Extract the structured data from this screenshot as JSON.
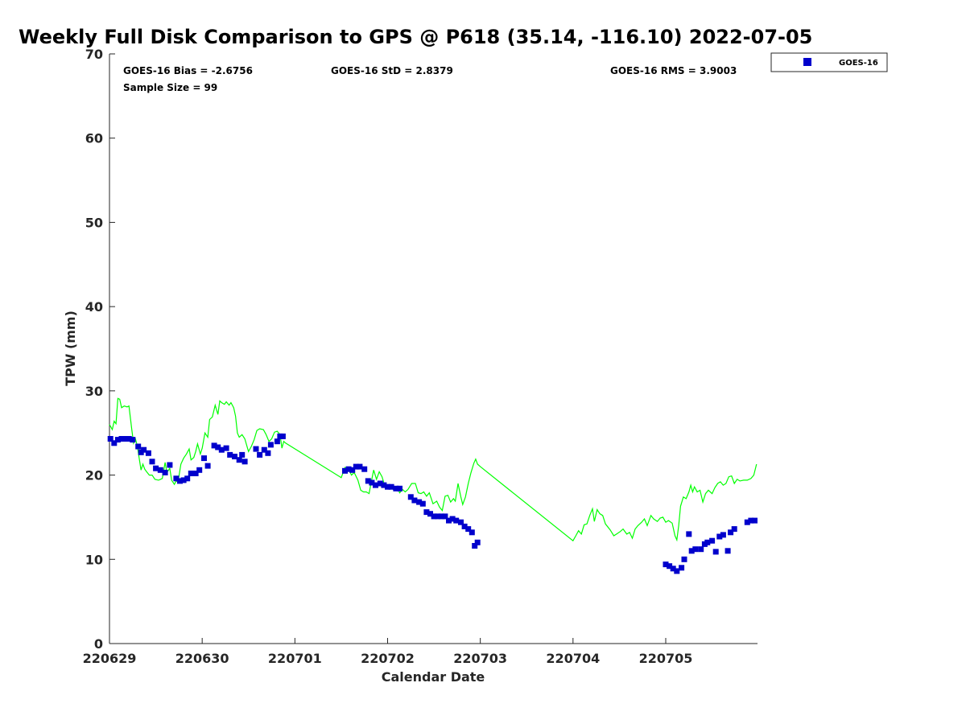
{
  "chart_data": {
    "type": "scatter",
    "title": "Weekly Full Disk Comparison to GPS @ P618 (35.14, -116.10) 2022-07-05",
    "xlabel": "Calendar Date",
    "ylabel": "TPW (mm)",
    "xlim": [
      0,
      6.99
    ],
    "ylim": [
      0,
      70
    ],
    "x_tick_values": [
      0,
      1,
      2,
      3,
      4,
      5,
      6
    ],
    "x_tick_labels": [
      "220629",
      "220630",
      "220701",
      "220702",
      "220703",
      "220704",
      "220705"
    ],
    "y_tick_values": [
      0,
      10,
      20,
      30,
      40,
      50,
      60,
      70
    ],
    "y_tick_labels": [
      "0",
      "10",
      "20",
      "30",
      "40",
      "50",
      "60",
      "70"
    ],
    "grid": false,
    "legend_position": "outside-top-right",
    "stats": {
      "bias": "GOES-16 Bias = -2.6756",
      "std": "GOES-16 StD = 2.8379",
      "rms": "GOES-16 RMS = 3.9003",
      "sample": "Sample Size = 99"
    },
    "series": [
      {
        "name": "GOES-16",
        "kind": "markers",
        "color": "#0000cc",
        "points": [
          [
            0.01,
            24.3
          ],
          [
            0.05,
            23.8
          ],
          [
            0.09,
            24.2
          ],
          [
            0.13,
            24.3
          ],
          [
            0.17,
            24.3
          ],
          [
            0.21,
            24.3
          ],
          [
            0.25,
            24.2
          ],
          [
            0.31,
            23.4
          ],
          [
            0.34,
            22.7
          ],
          [
            0.37,
            23.0
          ],
          [
            0.42,
            22.6
          ],
          [
            0.46,
            21.6
          ],
          [
            0.5,
            20.8
          ],
          [
            0.55,
            20.6
          ],
          [
            0.6,
            20.3
          ],
          [
            0.65,
            21.2
          ],
          [
            0.72,
            19.6
          ],
          [
            0.76,
            19.3
          ],
          [
            0.8,
            19.4
          ],
          [
            0.84,
            19.6
          ],
          [
            0.88,
            20.2
          ],
          [
            0.93,
            20.2
          ],
          [
            0.97,
            20.6
          ],
          [
            1.02,
            22.0
          ],
          [
            1.06,
            21.1
          ],
          [
            1.13,
            23.5
          ],
          [
            1.17,
            23.3
          ],
          [
            1.21,
            23.0
          ],
          [
            1.26,
            23.2
          ],
          [
            1.3,
            22.4
          ],
          [
            1.35,
            22.2
          ],
          [
            1.4,
            21.8
          ],
          [
            1.43,
            22.4
          ],
          [
            1.46,
            21.6
          ],
          [
            1.58,
            23.1
          ],
          [
            1.62,
            22.4
          ],
          [
            1.67,
            23.0
          ],
          [
            1.71,
            22.6
          ],
          [
            1.74,
            23.6
          ],
          [
            1.81,
            24.0
          ],
          [
            1.84,
            24.6
          ],
          [
            1.87,
            24.6
          ],
          [
            2.54,
            20.5
          ],
          [
            2.58,
            20.7
          ],
          [
            2.62,
            20.6
          ],
          [
            2.66,
            21.0
          ],
          [
            2.7,
            21.0
          ],
          [
            2.75,
            20.7
          ],
          [
            2.79,
            19.3
          ],
          [
            2.83,
            19.1
          ],
          [
            2.87,
            18.8
          ],
          [
            2.92,
            19.0
          ],
          [
            2.96,
            18.8
          ],
          [
            3.0,
            18.6
          ],
          [
            3.04,
            18.6
          ],
          [
            3.09,
            18.4
          ],
          [
            3.13,
            18.4
          ],
          [
            3.25,
            17.4
          ],
          [
            3.29,
            17.0
          ],
          [
            3.34,
            16.8
          ],
          [
            3.38,
            16.6
          ],
          [
            3.42,
            15.6
          ],
          [
            3.46,
            15.4
          ],
          [
            3.5,
            15.1
          ],
          [
            3.54,
            15.1
          ],
          [
            3.58,
            15.1
          ],
          [
            3.62,
            15.1
          ],
          [
            3.66,
            14.6
          ],
          [
            3.7,
            14.8
          ],
          [
            3.74,
            14.6
          ],
          [
            3.79,
            14.4
          ],
          [
            3.83,
            13.9
          ],
          [
            3.87,
            13.6
          ],
          [
            3.91,
            13.2
          ],
          [
            3.94,
            11.6
          ],
          [
            3.97,
            12.0
          ],
          [
            6.0,
            9.4
          ],
          [
            6.04,
            9.2
          ],
          [
            6.08,
            8.9
          ],
          [
            6.12,
            8.6
          ],
          [
            6.17,
            9.0
          ],
          [
            6.2,
            10.0
          ],
          [
            6.25,
            13.0
          ],
          [
            6.28,
            11.0
          ],
          [
            6.32,
            11.2
          ],
          [
            6.38,
            11.2
          ],
          [
            6.42,
            11.8
          ],
          [
            6.45,
            12.0
          ],
          [
            6.5,
            12.2
          ],
          [
            6.54,
            10.9
          ],
          [
            6.58,
            12.7
          ],
          [
            6.62,
            12.9
          ],
          [
            6.67,
            11.0
          ],
          [
            6.7,
            13.2
          ],
          [
            6.74,
            13.6
          ],
          [
            6.88,
            14.4
          ],
          [
            6.92,
            14.6
          ],
          [
            6.96,
            14.6
          ]
        ]
      },
      {
        "kind": "line",
        "color": "#00ff00",
        "points": [
          [
            0.0,
            26.0
          ],
          [
            0.03,
            25.4
          ],
          [
            0.05,
            26.4
          ],
          [
            0.07,
            26.1
          ],
          [
            0.09,
            29.1
          ],
          [
            0.11,
            29.0
          ],
          [
            0.13,
            28.0
          ],
          [
            0.16,
            28.2
          ],
          [
            0.19,
            28.1
          ],
          [
            0.21,
            28.2
          ],
          [
            0.24,
            25.5
          ],
          [
            0.26,
            23.8
          ],
          [
            0.28,
            24.3
          ],
          [
            0.3,
            23.5
          ],
          [
            0.32,
            22.0
          ],
          [
            0.34,
            20.6
          ],
          [
            0.36,
            21.3
          ],
          [
            0.38,
            20.7
          ],
          [
            0.4,
            20.4
          ],
          [
            0.43,
            20.0
          ],
          [
            0.46,
            20.0
          ],
          [
            0.49,
            19.5
          ],
          [
            0.53,
            19.4
          ],
          [
            0.57,
            19.6
          ],
          [
            0.6,
            21.5
          ],
          [
            0.62,
            20.3
          ],
          [
            0.65,
            20.8
          ],
          [
            0.67,
            19.4
          ],
          [
            0.7,
            18.9
          ],
          [
            0.72,
            19.3
          ],
          [
            0.74,
            19.2
          ],
          [
            0.77,
            21.3
          ],
          [
            0.8,
            22.0
          ],
          [
            0.83,
            22.5
          ],
          [
            0.86,
            23.1
          ],
          [
            0.88,
            21.8
          ],
          [
            0.91,
            22.1
          ],
          [
            0.93,
            22.8
          ],
          [
            0.95,
            23.7
          ],
          [
            0.98,
            22.5
          ],
          [
            1.0,
            23.2
          ],
          [
            1.03,
            25.0
          ],
          [
            1.06,
            24.5
          ],
          [
            1.08,
            26.6
          ],
          [
            1.11,
            26.9
          ],
          [
            1.14,
            28.3
          ],
          [
            1.17,
            27.2
          ],
          [
            1.19,
            28.8
          ],
          [
            1.21,
            28.6
          ],
          [
            1.24,
            28.4
          ],
          [
            1.26,
            28.7
          ],
          [
            1.29,
            28.3
          ],
          [
            1.31,
            28.6
          ],
          [
            1.34,
            28.0
          ],
          [
            1.36,
            27.0
          ],
          [
            1.38,
            25.0
          ],
          [
            1.4,
            24.5
          ],
          [
            1.43,
            24.8
          ],
          [
            1.46,
            24.3
          ],
          [
            1.5,
            22.8
          ],
          [
            1.53,
            23.4
          ],
          [
            1.56,
            24.2
          ],
          [
            1.59,
            25.3
          ],
          [
            1.62,
            25.5
          ],
          [
            1.66,
            25.4
          ],
          [
            1.69,
            24.8
          ],
          [
            1.72,
            24.0
          ],
          [
            1.75,
            24.3
          ],
          [
            1.78,
            25.1
          ],
          [
            1.81,
            25.2
          ],
          [
            1.84,
            24.8
          ],
          [
            1.86,
            23.2
          ],
          [
            1.88,
            24.0
          ],
          [
            1.9,
            23.8
          ],
          [
            2.5,
            19.7
          ],
          [
            2.54,
            20.9
          ],
          [
            2.58,
            20.7
          ],
          [
            2.61,
            20.0
          ],
          [
            2.64,
            20.3
          ],
          [
            2.68,
            19.4
          ],
          [
            2.71,
            18.2
          ],
          [
            2.74,
            18.0
          ],
          [
            2.77,
            18.0
          ],
          [
            2.8,
            17.8
          ],
          [
            2.82,
            19.0
          ],
          [
            2.85,
            20.6
          ],
          [
            2.88,
            19.5
          ],
          [
            2.91,
            20.4
          ],
          [
            2.94,
            19.8
          ],
          [
            2.97,
            18.7
          ],
          [
            3.0,
            18.5
          ],
          [
            3.03,
            18.7
          ],
          [
            3.06,
            18.3
          ],
          [
            3.1,
            18.6
          ],
          [
            3.13,
            17.9
          ],
          [
            3.16,
            18.3
          ],
          [
            3.19,
            18.0
          ],
          [
            3.22,
            18.3
          ],
          [
            3.26,
            19.0
          ],
          [
            3.3,
            19.0
          ],
          [
            3.33,
            17.9
          ],
          [
            3.36,
            17.8
          ],
          [
            3.39,
            18.0
          ],
          [
            3.42,
            17.5
          ],
          [
            3.45,
            17.9
          ],
          [
            3.49,
            16.6
          ],
          [
            3.53,
            16.9
          ],
          [
            3.56,
            16.2
          ],
          [
            3.59,
            15.8
          ],
          [
            3.62,
            17.5
          ],
          [
            3.65,
            17.6
          ],
          [
            3.68,
            16.8
          ],
          [
            3.71,
            17.2
          ],
          [
            3.73,
            16.9
          ],
          [
            3.76,
            19.0
          ],
          [
            3.79,
            17.4
          ],
          [
            3.81,
            16.5
          ],
          [
            3.84,
            17.4
          ],
          [
            3.87,
            19.0
          ],
          [
            3.9,
            20.3
          ],
          [
            3.93,
            21.4
          ],
          [
            3.95,
            21.9
          ],
          [
            3.97,
            21.3
          ],
          [
            4.0,
            21.0
          ],
          [
            5.0,
            12.2
          ],
          [
            5.03,
            12.8
          ],
          [
            5.06,
            13.4
          ],
          [
            5.09,
            13.0
          ],
          [
            5.12,
            14.1
          ],
          [
            5.15,
            14.2
          ],
          [
            5.18,
            15.2
          ],
          [
            5.21,
            16.0
          ],
          [
            5.23,
            14.5
          ],
          [
            5.26,
            15.9
          ],
          [
            5.29,
            15.4
          ],
          [
            5.32,
            15.2
          ],
          [
            5.35,
            14.2
          ],
          [
            5.4,
            13.5
          ],
          [
            5.44,
            12.8
          ],
          [
            5.47,
            13.0
          ],
          [
            5.51,
            13.3
          ],
          [
            5.54,
            13.6
          ],
          [
            5.58,
            13.0
          ],
          [
            5.61,
            13.2
          ],
          [
            5.64,
            12.5
          ],
          [
            5.67,
            13.6
          ],
          [
            5.7,
            14.0
          ],
          [
            5.74,
            14.4
          ],
          [
            5.77,
            14.8
          ],
          [
            5.8,
            14.0
          ],
          [
            5.84,
            15.2
          ],
          [
            5.87,
            14.8
          ],
          [
            5.91,
            14.5
          ],
          [
            5.94,
            14.9
          ],
          [
            5.97,
            15.0
          ],
          [
            6.0,
            14.4
          ],
          [
            6.03,
            14.6
          ],
          [
            6.07,
            14.3
          ],
          [
            6.1,
            12.8
          ],
          [
            6.12,
            12.3
          ],
          [
            6.14,
            14.0
          ],
          [
            6.16,
            16.3
          ],
          [
            6.19,
            17.4
          ],
          [
            6.22,
            17.2
          ],
          [
            6.25,
            18.0
          ],
          [
            6.27,
            18.8
          ],
          [
            6.29,
            18.0
          ],
          [
            6.31,
            18.6
          ],
          [
            6.34,
            18.0
          ],
          [
            6.37,
            18.2
          ],
          [
            6.4,
            16.8
          ],
          [
            6.43,
            17.8
          ],
          [
            6.46,
            18.2
          ],
          [
            6.5,
            17.8
          ],
          [
            6.53,
            18.5
          ],
          [
            6.56,
            19.0
          ],
          [
            6.59,
            19.2
          ],
          [
            6.62,
            18.8
          ],
          [
            6.65,
            19.0
          ],
          [
            6.68,
            19.8
          ],
          [
            6.71,
            19.9
          ],
          [
            6.74,
            19.0
          ],
          [
            6.77,
            19.5
          ],
          [
            6.8,
            19.3
          ],
          [
            6.84,
            19.4
          ],
          [
            6.88,
            19.4
          ],
          [
            6.92,
            19.6
          ],
          [
            6.95,
            20.0
          ],
          [
            6.98,
            21.3
          ]
        ]
      }
    ]
  }
}
